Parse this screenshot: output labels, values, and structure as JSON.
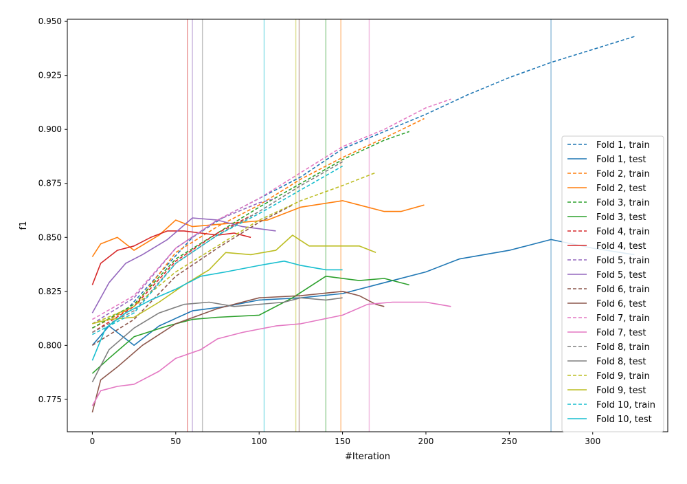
{
  "chart_data": {
    "type": "line",
    "title": "",
    "xlabel": "#Iteration",
    "ylabel": "f1",
    "xlim": [
      -15,
      345
    ],
    "ylim": [
      0.76,
      0.951
    ],
    "x_ticks": [
      "0",
      "50",
      "100",
      "150",
      "200",
      "250",
      "300"
    ],
    "y_ticks": [
      "0.775",
      "0.800",
      "0.825",
      "0.850",
      "0.875",
      "0.900",
      "0.925",
      "0.950"
    ],
    "grid": false,
    "legend_position": "right",
    "vertical_lines": [
      {
        "x": 275,
        "color": "#1f77b4",
        "label_for": "Fold 1"
      },
      {
        "x": 149,
        "color": "#ff7f0e",
        "label_for": "Fold 2"
      },
      {
        "x": 140,
        "color": "#2ca02c",
        "label_for": "Fold 3"
      },
      {
        "x": 57,
        "color": "#d62728",
        "label_for": "Fold 4"
      },
      {
        "x": 60,
        "color": "#9467bd",
        "label_for": "Fold 5"
      },
      {
        "x": 124,
        "color": "#8c564b",
        "label_for": "Fold 6"
      },
      {
        "x": 166,
        "color": "#e377c2",
        "label_for": "Fold 7"
      },
      {
        "x": 66,
        "color": "#7f7f7f",
        "label_for": "Fold 8"
      },
      {
        "x": 122,
        "color": "#bcbd22",
        "label_for": "Fold 9"
      },
      {
        "x": 103,
        "color": "#17becf",
        "label_for": "Fold 10"
      }
    ],
    "series": [
      {
        "name": "Fold 1, train",
        "color": "#1f77b4",
        "style": "dashed",
        "points": [
          [
            0,
            0.808
          ],
          [
            20,
            0.816
          ],
          [
            40,
            0.833
          ],
          [
            60,
            0.85
          ],
          [
            80,
            0.86
          ],
          [
            100,
            0.868
          ],
          [
            125,
            0.878
          ],
          [
            150,
            0.891
          ],
          [
            175,
            0.899
          ],
          [
            200,
            0.907
          ],
          [
            225,
            0.916
          ],
          [
            250,
            0.924
          ],
          [
            275,
            0.931
          ],
          [
            300,
            0.937
          ],
          [
            325,
            0.943
          ]
        ]
      },
      {
        "name": "Fold 1, test",
        "color": "#1f77b4",
        "style": "solid",
        "points": [
          [
            0,
            0.8
          ],
          [
            10,
            0.809
          ],
          [
            25,
            0.8
          ],
          [
            40,
            0.809
          ],
          [
            60,
            0.816
          ],
          [
            80,
            0.818
          ],
          [
            100,
            0.821
          ],
          [
            125,
            0.822
          ],
          [
            150,
            0.824
          ],
          [
            175,
            0.829
          ],
          [
            200,
            0.834
          ],
          [
            220,
            0.84
          ],
          [
            250,
            0.844
          ],
          [
            275,
            0.849
          ],
          [
            300,
            0.845
          ],
          [
            325,
            0.842
          ]
        ]
      },
      {
        "name": "Fold 2, train",
        "color": "#ff7f0e",
        "style": "dashed",
        "points": [
          [
            0,
            0.808
          ],
          [
            25,
            0.818
          ],
          [
            50,
            0.843
          ],
          [
            75,
            0.855
          ],
          [
            100,
            0.865
          ],
          [
            125,
            0.877
          ],
          [
            150,
            0.887
          ],
          [
            175,
            0.896
          ],
          [
            199,
            0.905
          ]
        ]
      },
      {
        "name": "Fold 2, test",
        "color": "#ff7f0e",
        "style": "solid",
        "points": [
          [
            0,
            0.841
          ],
          [
            5,
            0.847
          ],
          [
            15,
            0.85
          ],
          [
            25,
            0.844
          ],
          [
            40,
            0.851
          ],
          [
            50,
            0.858
          ],
          [
            60,
            0.855
          ],
          [
            75,
            0.856
          ],
          [
            90,
            0.857
          ],
          [
            105,
            0.858
          ],
          [
            125,
            0.864
          ],
          [
            150,
            0.867
          ],
          [
            160,
            0.865
          ],
          [
            175,
            0.862
          ],
          [
            185,
            0.862
          ],
          [
            199,
            0.865
          ]
        ]
      },
      {
        "name": "Fold 3, train",
        "color": "#2ca02c",
        "style": "dashed",
        "points": [
          [
            0,
            0.808
          ],
          [
            25,
            0.819
          ],
          [
            50,
            0.84
          ],
          [
            75,
            0.852
          ],
          [
            100,
            0.864
          ],
          [
            125,
            0.875
          ],
          [
            150,
            0.886
          ],
          [
            175,
            0.895
          ],
          [
            190,
            0.899
          ]
        ]
      },
      {
        "name": "Fold 3, test",
        "color": "#2ca02c",
        "style": "solid",
        "points": [
          [
            0,
            0.787
          ],
          [
            10,
            0.794
          ],
          [
            25,
            0.804
          ],
          [
            45,
            0.809
          ],
          [
            60,
            0.812
          ],
          [
            75,
            0.813
          ],
          [
            100,
            0.814
          ],
          [
            120,
            0.822
          ],
          [
            140,
            0.832
          ],
          [
            160,
            0.83
          ],
          [
            175,
            0.831
          ],
          [
            190,
            0.828
          ]
        ]
      },
      {
        "name": "Fold 4, train",
        "color": "#d62728",
        "style": "dashed",
        "points": [
          [
            0,
            0.806
          ],
          [
            25,
            0.818
          ],
          [
            50,
            0.839
          ],
          [
            75,
            0.852
          ],
          [
            95,
            0.86
          ]
        ]
      },
      {
        "name": "Fold 4, test",
        "color": "#d62728",
        "style": "solid",
        "points": [
          [
            0,
            0.828
          ],
          [
            5,
            0.838
          ],
          [
            15,
            0.844
          ],
          [
            25,
            0.846
          ],
          [
            35,
            0.85
          ],
          [
            45,
            0.853
          ],
          [
            55,
            0.853
          ],
          [
            65,
            0.852
          ],
          [
            75,
            0.851
          ],
          [
            85,
            0.852
          ],
          [
            95,
            0.85
          ]
        ]
      },
      {
        "name": "Fold 5, train",
        "color": "#9467bd",
        "style": "dashed",
        "points": [
          [
            0,
            0.81
          ],
          [
            25,
            0.822
          ],
          [
            50,
            0.845
          ],
          [
            75,
            0.858
          ],
          [
            100,
            0.866
          ],
          [
            110,
            0.868
          ]
        ]
      },
      {
        "name": "Fold 5, test",
        "color": "#9467bd",
        "style": "solid",
        "points": [
          [
            0,
            0.815
          ],
          [
            10,
            0.829
          ],
          [
            20,
            0.838
          ],
          [
            30,
            0.842
          ],
          [
            45,
            0.849
          ],
          [
            60,
            0.859
          ],
          [
            75,
            0.858
          ],
          [
            90,
            0.855
          ],
          [
            100,
            0.854
          ],
          [
            110,
            0.853
          ]
        ]
      },
      {
        "name": "Fold 6, train",
        "color": "#8c564b",
        "style": "dashed",
        "points": [
          [
            0,
            0.8
          ],
          [
            25,
            0.812
          ],
          [
            50,
            0.832
          ],
          [
            75,
            0.845
          ],
          [
            100,
            0.857
          ],
          [
            120,
            0.865
          ]
        ]
      },
      {
        "name": "Fold 6, test",
        "color": "#8c564b",
        "style": "solid",
        "points": [
          [
            0,
            0.769
          ],
          [
            5,
            0.784
          ],
          [
            15,
            0.79
          ],
          [
            30,
            0.8
          ],
          [
            50,
            0.81
          ],
          [
            75,
            0.817
          ],
          [
            100,
            0.822
          ],
          [
            125,
            0.823
          ],
          [
            150,
            0.825
          ],
          [
            160,
            0.823
          ],
          [
            170,
            0.819
          ],
          [
            175,
            0.818
          ]
        ]
      },
      {
        "name": "Fold 7, train",
        "color": "#e377c2",
        "style": "dashed",
        "points": [
          [
            0,
            0.812
          ],
          [
            25,
            0.823
          ],
          [
            50,
            0.845
          ],
          [
            75,
            0.858
          ],
          [
            100,
            0.868
          ],
          [
            125,
            0.88
          ],
          [
            150,
            0.892
          ],
          [
            175,
            0.9
          ],
          [
            200,
            0.91
          ],
          [
            215,
            0.914
          ]
        ]
      },
      {
        "name": "Fold 7, test",
        "color": "#e377c2",
        "style": "solid",
        "points": [
          [
            0,
            0.772
          ],
          [
            5,
            0.779
          ],
          [
            15,
            0.781
          ],
          [
            25,
            0.782
          ],
          [
            40,
            0.788
          ],
          [
            50,
            0.794
          ],
          [
            65,
            0.798
          ],
          [
            75,
            0.803
          ],
          [
            90,
            0.806
          ],
          [
            110,
            0.809
          ],
          [
            125,
            0.81
          ],
          [
            150,
            0.814
          ],
          [
            165,
            0.819
          ],
          [
            180,
            0.82
          ],
          [
            200,
            0.82
          ],
          [
            215,
            0.818
          ]
        ]
      },
      {
        "name": "Fold 8, train",
        "color": "#7f7f7f",
        "style": "dashed",
        "points": [
          [
            0,
            0.806
          ],
          [
            25,
            0.816
          ],
          [
            50,
            0.838
          ],
          [
            75,
            0.851
          ],
          [
            100,
            0.862
          ],
          [
            125,
            0.874
          ],
          [
            150,
            0.885
          ]
        ]
      },
      {
        "name": "Fold 8, test",
        "color": "#7f7f7f",
        "style": "solid",
        "points": [
          [
            0,
            0.783
          ],
          [
            10,
            0.798
          ],
          [
            25,
            0.808
          ],
          [
            40,
            0.815
          ],
          [
            55,
            0.819
          ],
          [
            70,
            0.82
          ],
          [
            85,
            0.818
          ],
          [
            100,
            0.819
          ],
          [
            115,
            0.82
          ],
          [
            125,
            0.822
          ],
          [
            140,
            0.821
          ],
          [
            150,
            0.822
          ]
        ]
      },
      {
        "name": "Fold 9, train",
        "color": "#bcbd22",
        "style": "dashed",
        "points": [
          [
            0,
            0.81
          ],
          [
            25,
            0.818
          ],
          [
            50,
            0.834
          ],
          [
            75,
            0.846
          ],
          [
            100,
            0.858
          ],
          [
            125,
            0.867
          ],
          [
            150,
            0.874
          ],
          [
            170,
            0.88
          ]
        ]
      },
      {
        "name": "Fold 9, test",
        "color": "#bcbd22",
        "style": "solid",
        "points": [
          [
            0,
            0.81
          ],
          [
            10,
            0.812
          ],
          [
            25,
            0.813
          ],
          [
            40,
            0.82
          ],
          [
            55,
            0.828
          ],
          [
            70,
            0.835
          ],
          [
            80,
            0.843
          ],
          [
            95,
            0.842
          ],
          [
            110,
            0.844
          ],
          [
            120,
            0.851
          ],
          [
            130,
            0.846
          ],
          [
            150,
            0.846
          ],
          [
            160,
            0.846
          ],
          [
            170,
            0.843
          ]
        ]
      },
      {
        "name": "Fold 10, train",
        "color": "#17becf",
        "style": "dashed",
        "points": [
          [
            0,
            0.805
          ],
          [
            25,
            0.815
          ],
          [
            50,
            0.838
          ],
          [
            75,
            0.851
          ],
          [
            100,
            0.861
          ],
          [
            125,
            0.872
          ],
          [
            150,
            0.883
          ]
        ]
      },
      {
        "name": "Fold 10, test",
        "color": "#17becf",
        "style": "solid",
        "points": [
          [
            0,
            0.793
          ],
          [
            8,
            0.808
          ],
          [
            20,
            0.815
          ],
          [
            35,
            0.821
          ],
          [
            50,
            0.826
          ],
          [
            65,
            0.832
          ],
          [
            80,
            0.834
          ],
          [
            100,
            0.837
          ],
          [
            115,
            0.839
          ],
          [
            125,
            0.837
          ],
          [
            140,
            0.835
          ],
          [
            150,
            0.835
          ]
        ]
      }
    ]
  }
}
